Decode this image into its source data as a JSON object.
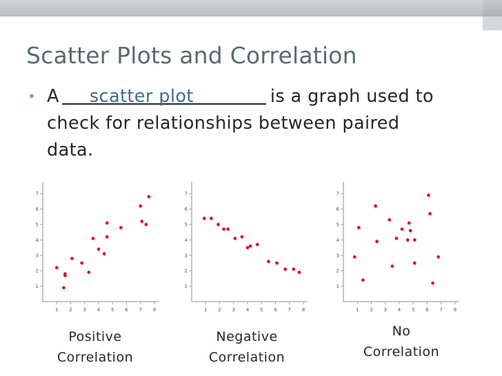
{
  "slide": {
    "title": "Scatter Plots and Correlation",
    "bullet_prefix": "A",
    "blank_answer": "scatter plot",
    "bullet_rest_line1": "is  a graph used to",
    "bullet_line2": "check for relationships between paired",
    "bullet_line3": "data.",
    "colors": {
      "title": "#5a6b6b",
      "bullet": "#7ea7a9",
      "answer": "#3d6f8f",
      "points": "#e8102a",
      "axes": "#a0a0a0"
    }
  },
  "captions": {
    "positive_line1": "Positive",
    "positive_line2": "Correlation",
    "negative_line1": "Negative",
    "negative_line2": "Correlation",
    "none_line1": "No",
    "none_line2": "Correlation"
  },
  "chart_data": [
    {
      "type": "scatter",
      "caption": "Positive Correlation",
      "xlim": [
        0,
        8
      ],
      "ylim": [
        0,
        7.5
      ],
      "xticks": [
        "1",
        "2",
        "3",
        "4",
        "5",
        "6",
        "7",
        "8"
      ],
      "yticks": [
        "1",
        "2",
        "3",
        "4",
        "5",
        "6",
        "7"
      ],
      "points": [
        [
          1.0,
          2.2
        ],
        [
          1.6,
          1.8
        ],
        [
          1.6,
          1.7
        ],
        [
          1.5,
          0.9
        ],
        [
          2.1,
          2.8
        ],
        [
          2.8,
          2.5
        ],
        [
          3.3,
          1.9
        ],
        [
          3.6,
          4.1
        ],
        [
          4.0,
          3.4
        ],
        [
          4.4,
          3.1
        ],
        [
          4.6,
          4.2
        ],
        [
          4.6,
          5.1
        ],
        [
          5.6,
          4.8
        ],
        [
          7.0,
          6.2
        ],
        [
          7.1,
          5.2
        ],
        [
          7.4,
          5.0
        ],
        [
          7.6,
          6.8
        ]
      ],
      "grid": false
    },
    {
      "type": "scatter",
      "caption": "Negative Correlation",
      "xlim": [
        0,
        8
      ],
      "ylim": [
        0,
        7.5
      ],
      "xticks": [
        "1",
        "2",
        "3",
        "4",
        "5",
        "6",
        "7",
        "8"
      ],
      "yticks": [
        "1",
        "2",
        "3",
        "4",
        "5",
        "6",
        "7"
      ],
      "points": [
        [
          0.9,
          5.4
        ],
        [
          1.4,
          5.4
        ],
        [
          1.9,
          5.0
        ],
        [
          2.3,
          4.7
        ],
        [
          2.6,
          4.7
        ],
        [
          3.1,
          4.1
        ],
        [
          3.6,
          4.2
        ],
        [
          4.0,
          3.5
        ],
        [
          4.2,
          3.6
        ],
        [
          4.7,
          3.7
        ],
        [
          5.5,
          2.6
        ],
        [
          6.1,
          2.5
        ],
        [
          6.7,
          2.1
        ],
        [
          7.3,
          2.1
        ],
        [
          7.7,
          1.9
        ]
      ],
      "grid": false
    },
    {
      "type": "scatter",
      "caption": "No Correlation",
      "xlim": [
        0,
        8
      ],
      "ylim": [
        0,
        7.5
      ],
      "xticks": [
        "1",
        "2",
        "3",
        "4",
        "5",
        "6",
        "7",
        "8"
      ],
      "yticks": [
        "1",
        "2",
        "3",
        "4",
        "5",
        "6",
        "7"
      ],
      "points": [
        [
          0.8,
          2.9
        ],
        [
          1.1,
          4.8
        ],
        [
          1.4,
          1.4
        ],
        [
          2.3,
          6.2
        ],
        [
          2.4,
          3.9
        ],
        [
          3.3,
          5.3
        ],
        [
          3.5,
          2.3
        ],
        [
          3.8,
          4.1
        ],
        [
          4.2,
          4.7
        ],
        [
          4.6,
          4.0
        ],
        [
          4.7,
          5.1
        ],
        [
          4.8,
          4.6
        ],
        [
          5.1,
          4.0
        ],
        [
          5.1,
          2.5
        ],
        [
          6.1,
          6.9
        ],
        [
          6.2,
          5.7
        ],
        [
          6.4,
          1.2
        ],
        [
          6.8,
          2.9
        ]
      ],
      "grid": false
    }
  ]
}
